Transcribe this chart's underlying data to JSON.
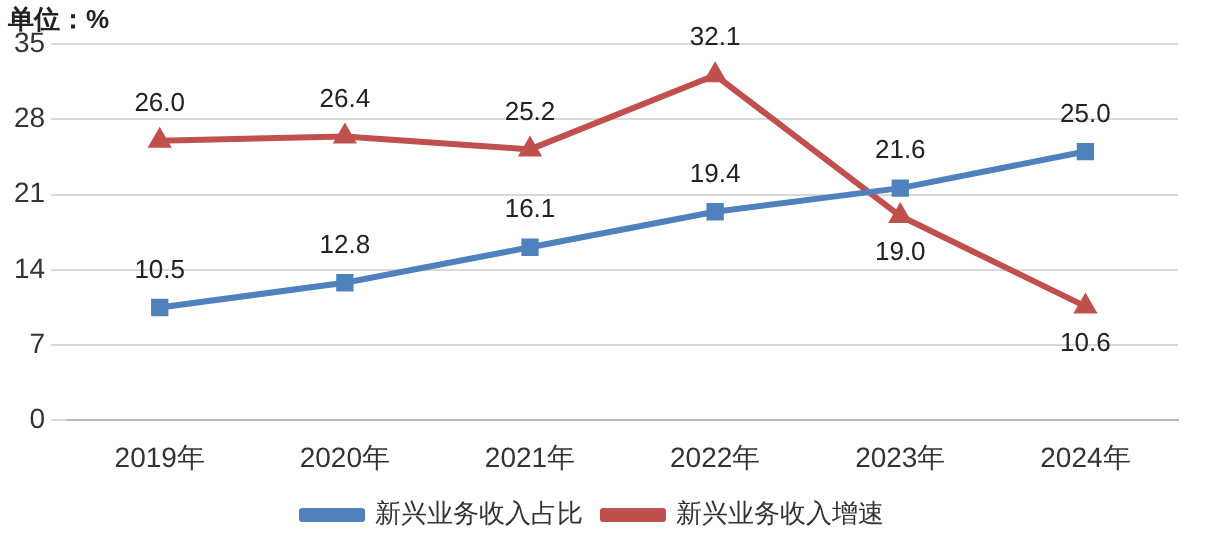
{
  "chart_data": {
    "type": "line",
    "ylabel": "单位：%",
    "categories": [
      "2019年",
      "2020年",
      "2021年",
      "2022年",
      "2023年",
      "2024年"
    ],
    "series": [
      {
        "name": "新兴业务收入占比",
        "color": "#4f81bd",
        "marker": "square",
        "values": [
          10.5,
          12.8,
          16.1,
          19.4,
          21.6,
          25.0
        ],
        "value_labels": [
          "10.5",
          "12.8",
          "16.1",
          "19.4",
          "21.6",
          "25.0"
        ]
      },
      {
        "name": "新兴业务收入增速",
        "color": "#c0504d",
        "marker": "triangle",
        "values": [
          26.0,
          26.4,
          25.2,
          32.1,
          19.0,
          10.6
        ],
        "value_labels": [
          "26.0",
          "26.4",
          "25.2",
          "32.1",
          "19.0",
          "10.6"
        ]
      }
    ],
    "ylim": [
      0,
      35
    ],
    "yticks": [
      0,
      7,
      14,
      21,
      28,
      35
    ],
    "grid": "y",
    "legend": "bottom"
  }
}
